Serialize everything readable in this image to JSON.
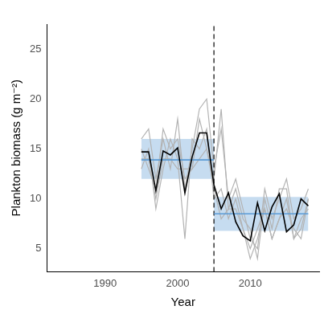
{
  "chart_data": {
    "type": "line",
    "x_label": "Year",
    "y_label": "Plankton biomass (g m⁻²)",
    "xlim": [
      1982,
      2019.5
    ],
    "xticks": [
      1990,
      2000,
      2010
    ],
    "ylim": [
      2.7,
      27.5
    ],
    "yticks": [
      5,
      10,
      15,
      20,
      25
    ],
    "grid": false,
    "x": [
      1995,
      1996,
      1997,
      1998,
      1999,
      2000,
      2001,
      2002,
      2003,
      2004,
      2005,
      2006,
      2007,
      2008,
      2009,
      2010,
      2011,
      2012,
      2013,
      2014,
      2015,
      2016,
      2017,
      2018
    ],
    "series": [
      {
        "color": "#000000",
        "values": [
          14.7,
          14.7,
          10.8,
          14.8,
          14.4,
          15.1,
          10.6,
          14.2,
          16.6,
          16.6,
          11.4,
          9.0,
          10.6,
          7.7,
          6.3,
          5.8,
          9.6,
          6.8,
          9.2,
          10.5,
          6.7,
          7.4,
          10.0,
          9.3
        ]
      },
      {
        "color": "#b3b3b3",
        "values": [
          16,
          17,
          12,
          16,
          13,
          18,
          11,
          15,
          19,
          20,
          13,
          17,
          10,
          12,
          9,
          6,
          5,
          11,
          8,
          10,
          12,
          8,
          9,
          11
        ]
      },
      {
        "color": "#b3b3b3",
        "values": [
          13,
          15,
          9,
          13,
          16,
          14,
          6,
          16,
          15,
          17,
          10,
          11,
          8,
          10,
          7,
          5,
          7,
          9,
          6,
          8,
          9,
          7,
          6,
          10
        ]
      },
      {
        "color": "#b3b3b3",
        "values": [
          15,
          13,
          11,
          17,
          15,
          16,
          12,
          13,
          18,
          15,
          12,
          19,
          9,
          11,
          8,
          7,
          4,
          10,
          7,
          11,
          11,
          6,
          8,
          9
        ]
      },
      {
        "color": "#b3b3b3",
        "values": [
          14,
          14,
          10,
          14,
          14,
          13,
          13,
          13,
          14,
          15,
          11,
          8,
          9,
          9,
          7,
          4,
          6,
          9,
          6,
          8,
          10,
          6,
          7,
          10
        ]
      }
    ],
    "means": [
      {
        "x": [
          1995,
          2005
        ],
        "value": 13.9,
        "lower": 12.0,
        "upper": 16.0,
        "color": "#5b9bd5"
      },
      {
        "x": [
          2005,
          2018
        ],
        "value": 8.5,
        "lower": 6.8,
        "upper": 10.2,
        "color": "#5b9bd5"
      }
    ],
    "vlines": [
      {
        "x": 2005,
        "line_style": "dashed",
        "color": "#000000"
      }
    ]
  }
}
